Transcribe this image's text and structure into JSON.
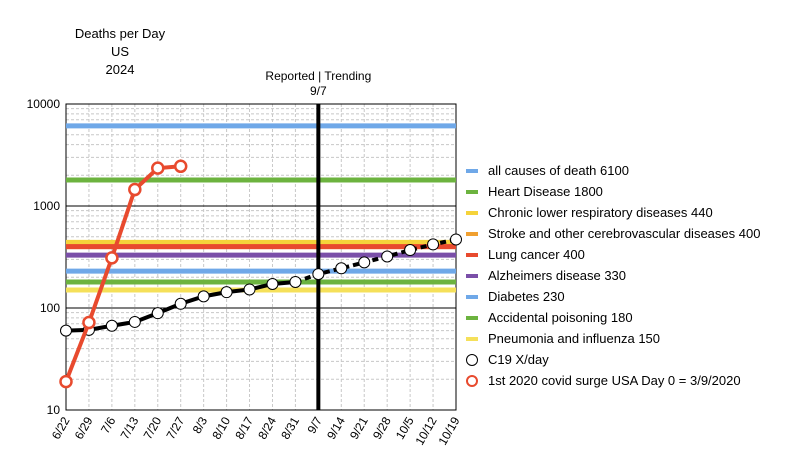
{
  "chart_data": {
    "type": "line",
    "title_lines": [
      "Deaths per Day",
      "US",
      "2024"
    ],
    "divider_annotation": [
      "Reported  |  Trending",
      "9/7"
    ],
    "y_scale": "log",
    "ylim": [
      10,
      10000
    ],
    "y_ticks": [
      "10",
      "100",
      "1000",
      "10000"
    ],
    "x_categories": [
      "6/22",
      "6/29",
      "7/6",
      "7/13",
      "7/20",
      "7/27",
      "8/3",
      "8/10",
      "8/17",
      "8/24",
      "8/31",
      "9/7",
      "9/14",
      "9/21",
      "9/28",
      "10/5",
      "10/12",
      "10/19"
    ],
    "divider_at": "9/7",
    "grid": true,
    "legend_position": "right",
    "reference_lines": [
      {
        "label": "all causes of death 6100",
        "value": 6100,
        "color": "#6fa8e8"
      },
      {
        "label": "Heart Disease 1800",
        "value": 1800,
        "color": "#6cb33f"
      },
      {
        "label": "Chronic lower respiratory diseases 440",
        "value": 440,
        "color": "#f5d33a"
      },
      {
        "label": "Stroke and other cerebrovascular diseases 400",
        "value": 400,
        "color": "#f0a030"
      },
      {
        "label": "Lung cancer 400",
        "value": 400,
        "color": "#e84a2e"
      },
      {
        "label": "Alzheimers disease 330",
        "value": 330,
        "color": "#7a4fa8"
      },
      {
        "label": "Diabetes 230",
        "value": 230,
        "color": "#6fa8e8"
      },
      {
        "label": "Accidental poisoning 180",
        "value": 180,
        "color": "#6cb33f"
      },
      {
        "label": "Pneumonia and influenza 150",
        "value": 150,
        "color": "#f5e05a"
      }
    ],
    "series": [
      {
        "name": "C19 X/day",
        "color": "#000000",
        "marker": "open-circle",
        "x": [
          "6/22",
          "6/29",
          "7/6",
          "7/13",
          "7/20",
          "7/27",
          "8/3",
          "8/10",
          "8/17",
          "8/24",
          "8/31",
          "9/7",
          "9/14",
          "9/21",
          "9/28",
          "10/5",
          "10/12",
          "10/19"
        ],
        "values": [
          60,
          61,
          67,
          73,
          89,
          110,
          130,
          143,
          152,
          172,
          180,
          215,
          245,
          280,
          320,
          370,
          420,
          470
        ],
        "reported_count": 11
      },
      {
        "name": "1st 2020 covid surge USA Day 0 = 3/9/2020",
        "color": "#e84a2e",
        "marker": "open-circle",
        "x": [
          "6/22",
          "6/29",
          "7/6",
          "7/13",
          "7/20",
          "7/27"
        ],
        "values": [
          19,
          72,
          310,
          1450,
          2350,
          2450
        ]
      }
    ]
  }
}
